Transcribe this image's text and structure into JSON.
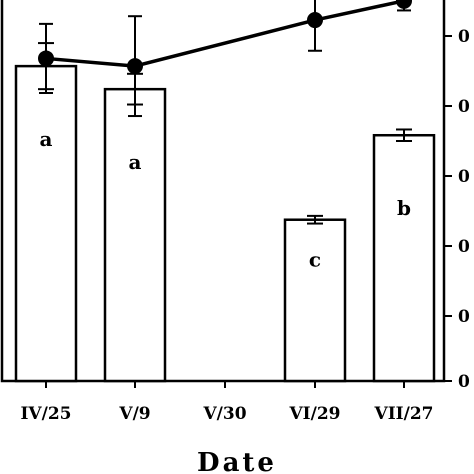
{
  "chart_data": {
    "type": "bar",
    "categories": [
      "IV/25",
      "V/9",
      "V/30",
      "VI/29",
      "VII/27"
    ],
    "xlabel": "Date",
    "ylim": [
      0,
      100
    ],
    "right_axis_tick_labels": [
      "0",
      "0",
      "0",
      "0",
      "0",
      "0"
    ],
    "series": [
      {
        "kind": "bar",
        "values": [
          82,
          76,
          null,
          42,
          64
        ],
        "errors": [
          6,
          4,
          null,
          1,
          1.5
        ],
        "significance_labels": [
          "a",
          "a",
          "",
          "c",
          "b"
        ]
      },
      {
        "kind": "line",
        "values": [
          84,
          82,
          null,
          94,
          99
        ],
        "errors": [
          9,
          13,
          null,
          8,
          2.5
        ]
      }
    ],
    "colors": {
      "bars": "#ffffff",
      "outline": "#000000",
      "line": "#000000"
    }
  }
}
